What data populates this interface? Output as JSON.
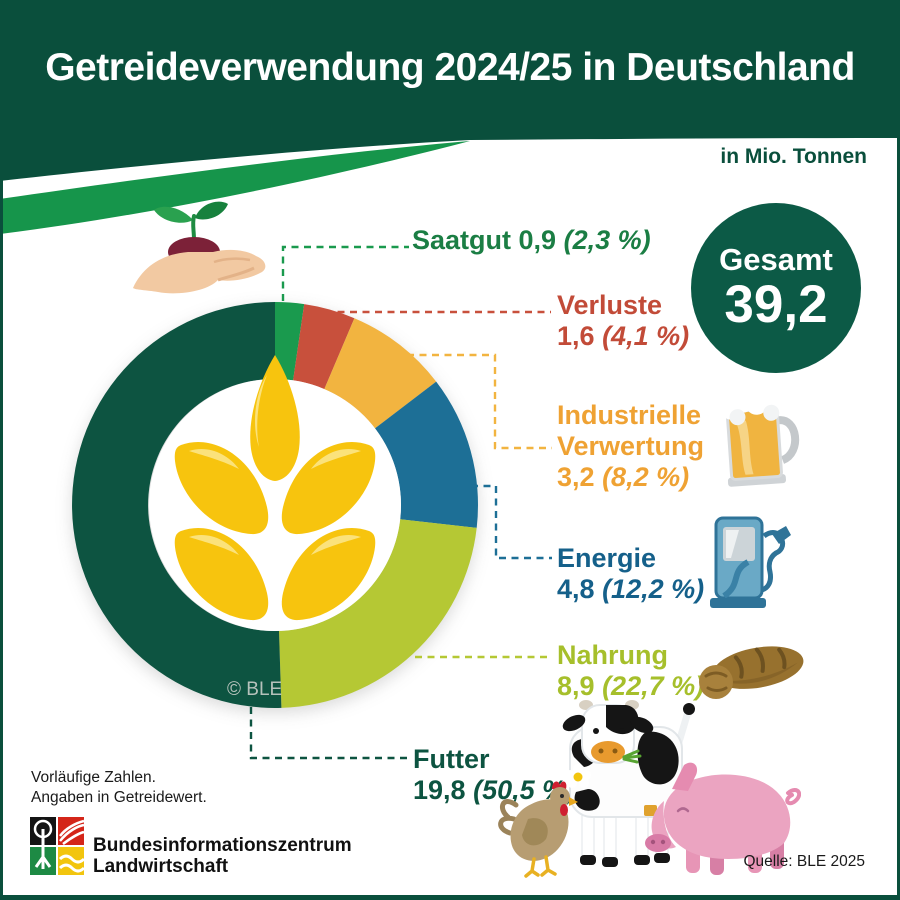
{
  "header": {
    "title": "Getreideverwendung 2024/25 in Deutschland",
    "unit_note": "in Mio. Tonnen"
  },
  "total_badge": {
    "label": "Gesamt",
    "value": "39,2"
  },
  "chart_data": {
    "type": "donut",
    "title": "Getreideverwendung 2024/25 in Deutschland",
    "unit": "Mio. Tonnen",
    "total": 39.2,
    "direction": "clockwise",
    "start_angle_deg": 0,
    "segments": [
      {
        "label": "Saatgut",
        "value": 0.9,
        "value_text": "0,9",
        "pct": 2.3,
        "pct_text": "(2,3 %)",
        "color": "#1a9a4e",
        "text_color": "#1b7e44",
        "icon": "hand-with-seedling-icon"
      },
      {
        "label": "Verluste",
        "value": 1.6,
        "value_text": "1,6",
        "pct": 4.1,
        "pct_text": "(4,1 %)",
        "color": "#c8503c",
        "text_color": "#c24b38"
      },
      {
        "label": "Industrielle Verwertung",
        "value": 3.2,
        "value_text": "3,2",
        "pct": 8.2,
        "pct_text": "(8,2 %)",
        "color": "#f2b440",
        "text_color": "#efa233",
        "icon": "beer-mug-icon"
      },
      {
        "label": "Energie",
        "value": 4.8,
        "value_text": "4,8",
        "pct": 12.2,
        "pct_text": "(12,2 %)",
        "color": "#1d6f96",
        "text_color": "#15608a",
        "icon": "fuel-pump-icon"
      },
      {
        "label": "Nahrung",
        "value": 8.9,
        "value_text": "8,9",
        "pct": 22.7,
        "pct_text": "(22,7 %)",
        "color": "#b5c834",
        "text_color": "#a6bf2b",
        "icon": "bread-icon"
      },
      {
        "label": "Futter",
        "value": 19.8,
        "value_text": "19,8",
        "pct": 50.5,
        "pct_text": "(50,5 %)",
        "color": "#0d5441",
        "text_color": "#0d5441",
        "icon": "farm-animals-icon"
      }
    ],
    "center_icon": "wheat-ear-icon",
    "copyright": "© BLE"
  },
  "footer": {
    "note_line1": "Vorläufige Zahlen.",
    "note_line2": "Angaben in Getreidewert.",
    "logo_line1": "Bundesinformationszentrum",
    "logo_line2": "Landwirtschaft",
    "source": "Quelle: BLE 2025"
  },
  "colors": {
    "header_bg": "#0a4f3c",
    "swoosh_green": "#16954b",
    "badge_bg": "#0c5a46",
    "page_bg": "#ffffff"
  }
}
